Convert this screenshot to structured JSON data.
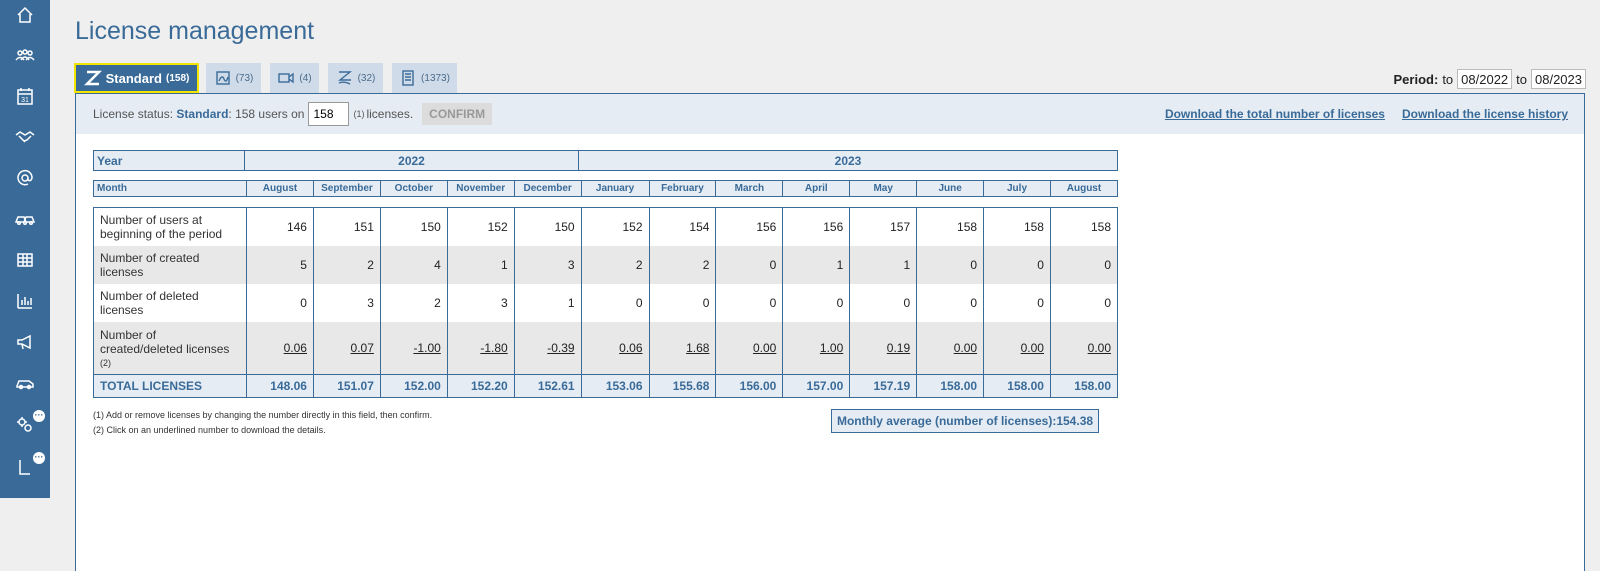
{
  "page": {
    "title": "License management"
  },
  "sidebar": {
    "items": [
      {
        "icon": "home-icon"
      },
      {
        "icon": "users-icon"
      },
      {
        "icon": "calendar-icon",
        "text": "31"
      },
      {
        "icon": "handshake-icon"
      },
      {
        "icon": "at-icon",
        "text": "@"
      },
      {
        "icon": "cars-icon"
      },
      {
        "icon": "table-icon"
      },
      {
        "icon": "bar-chart-icon"
      },
      {
        "icon": "megaphone-icon"
      },
      {
        "icon": "car-icon"
      },
      {
        "icon": "gears-icon",
        "badge": "···"
      },
      {
        "icon": "corner-icon",
        "badge": "···"
      }
    ]
  },
  "tabs": [
    {
      "label": "Standard",
      "count": "(158)",
      "icon": "z-logo-icon",
      "active": true
    },
    {
      "label": "",
      "count": "(73)",
      "icon": "signature-icon"
    },
    {
      "label": "",
      "count": "(4)",
      "icon": "video-icon"
    },
    {
      "label": "",
      "count": "(32)",
      "icon": "z-hand-icon"
    },
    {
      "label": "",
      "count": "(1373)",
      "icon": "document-icon"
    }
  ],
  "period": {
    "label": "Period:",
    "to1": "to",
    "from": "08/2022",
    "to2": "to",
    "until": "08/2023"
  },
  "status": {
    "prefix": "License status:",
    "plan": "Standard",
    "users_text": ": 158 users on",
    "licenses_value": "158",
    "footnote": "(1)",
    "suffix": "licenses.",
    "confirm": "CONFIRM"
  },
  "links": {
    "download_total": "Download the total number of licenses",
    "download_history": "Download the license history"
  },
  "table": {
    "year_label": "Year",
    "years": [
      "2022",
      "2023"
    ],
    "month_label": "Month",
    "months": [
      "August",
      "September",
      "October",
      "November",
      "December",
      "January",
      "February",
      "March",
      "April",
      "May",
      "June",
      "July",
      "August"
    ],
    "rows": [
      {
        "label": "Number of users at beginning of the period",
        "values": [
          "146",
          "151",
          "150",
          "152",
          "150",
          "152",
          "154",
          "156",
          "156",
          "157",
          "158",
          "158",
          "158"
        ]
      },
      {
        "label": "Number of created licenses",
        "values": [
          "5",
          "2",
          "4",
          "1",
          "3",
          "2",
          "2",
          "0",
          "1",
          "1",
          "0",
          "0",
          "0"
        ]
      },
      {
        "label": "Number of deleted licenses",
        "values": [
          "0",
          "3",
          "2",
          "3",
          "1",
          "0",
          "0",
          "0",
          "0",
          "0",
          "0",
          "0",
          "0"
        ]
      },
      {
        "label": "Number of created/deleted licenses",
        "footnote": "(2)",
        "values": [
          "0.06",
          "0.07",
          "-1.00",
          "-1.80",
          "-0.39",
          "0.06",
          "1.68",
          "0.00",
          "1.00",
          "0.19",
          "0.00",
          "0.00",
          "0.00"
        ]
      }
    ],
    "total": {
      "label": "TOTAL LICENSES",
      "values": [
        "148.06",
        "151.07",
        "152.00",
        "152.20",
        "152.61",
        "153.06",
        "155.68",
        "156.00",
        "157.00",
        "157.19",
        "158.00",
        "158.00",
        "158.00"
      ]
    }
  },
  "notes": [
    "(1) Add or remove licenses by changing the number directly in this field, then confirm.",
    "(2) Click on an underlined number to download the details."
  ],
  "monthly_average": "Monthly average (number of licenses):154.38",
  "colors": {
    "primary": "#3a6b98",
    "tab_highlight": "#f2e600",
    "header_bg": "#e5ecf4",
    "stripe": "#e8e8e8"
  }
}
